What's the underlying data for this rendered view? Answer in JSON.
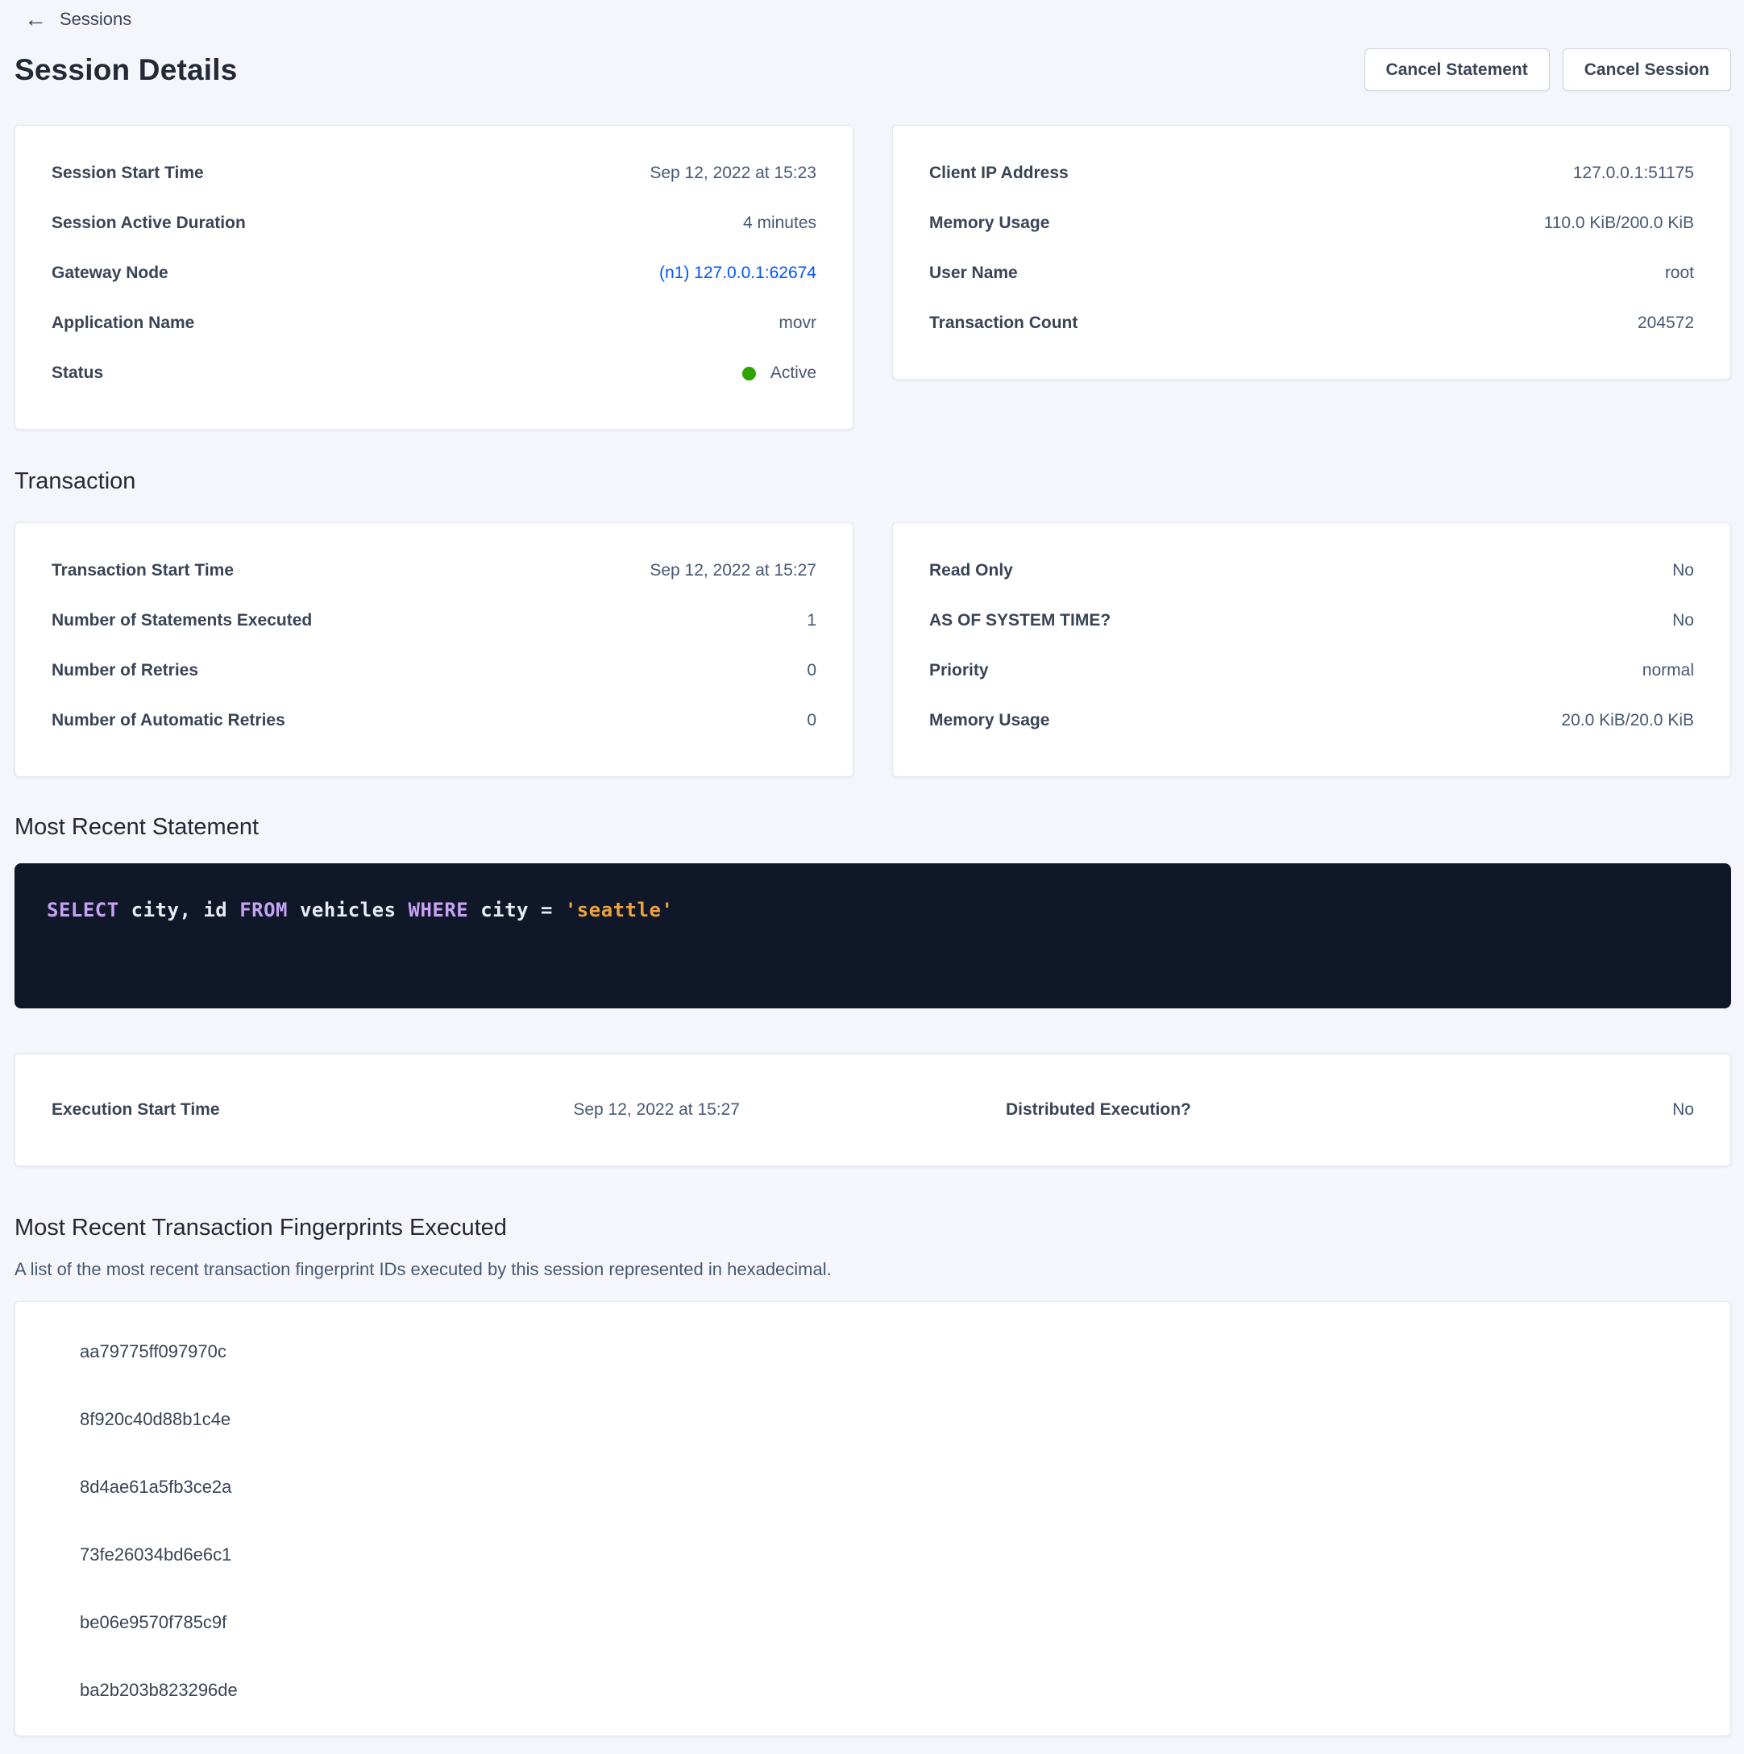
{
  "breadcrumb": {
    "label": "Sessions",
    "back_icon": "left-arrow"
  },
  "page": {
    "title": "Session Details"
  },
  "actions": {
    "cancel_statement": "Cancel Statement",
    "cancel_session": "Cancel Session"
  },
  "session": {
    "left": {
      "rows": [
        {
          "label": "Session Start Time",
          "value": "Sep 12, 2022 at 15:23"
        },
        {
          "label": "Session Active Duration",
          "value": "4 minutes"
        },
        {
          "label": "Gateway Node",
          "value": "(n1) 127.0.0.1:62674"
        },
        {
          "label": "Application Name",
          "value": "movr"
        },
        {
          "label": "Status",
          "value": "Active"
        }
      ]
    },
    "right": {
      "rows": [
        {
          "label": "Client IP Address",
          "value": "127.0.0.1:51175"
        },
        {
          "label": "Memory Usage",
          "value": "110.0 KiB/200.0 KiB"
        },
        {
          "label": "User Name",
          "value": "root"
        },
        {
          "label": "Transaction Count",
          "value": "204572"
        }
      ]
    }
  },
  "transaction": {
    "heading": "Transaction",
    "left": {
      "rows": [
        {
          "label": "Transaction Start Time",
          "value": "Sep 12, 2022 at 15:27"
        },
        {
          "label": "Number of Statements Executed",
          "value": "1"
        },
        {
          "label": "Number of Retries",
          "value": "0"
        },
        {
          "label": "Number of Automatic Retries",
          "value": "0"
        }
      ]
    },
    "right": {
      "rows": [
        {
          "label": "Read Only",
          "value": "No"
        },
        {
          "label": "AS OF SYSTEM TIME?",
          "value": "No"
        },
        {
          "label": "Priority",
          "value": "normal"
        },
        {
          "label": "Memory Usage",
          "value": "20.0 KiB/20.0 KiB"
        }
      ]
    }
  },
  "statement": {
    "heading": "Most Recent Statement",
    "sql_text": "SELECT city, id FROM vehicles WHERE city = 'seattle'",
    "tokens": [
      {
        "type": "keyword",
        "text": "SELECT"
      },
      {
        "type": "plain",
        "text": " city, id "
      },
      {
        "type": "keyword",
        "text": "FROM"
      },
      {
        "type": "plain",
        "text": " vehicles "
      },
      {
        "type": "keyword",
        "text": "WHERE"
      },
      {
        "type": "plain",
        "text": " city = "
      },
      {
        "type": "string",
        "text": "'seattle'"
      }
    ]
  },
  "execution": {
    "rows": [
      {
        "label": "Execution Start Time",
        "value": "Sep 12, 2022 at 15:27"
      },
      {
        "label": "Distributed Execution?",
        "value": "No"
      }
    ]
  },
  "fingerprints": {
    "heading": "Most Recent Transaction Fingerprints Executed",
    "description": "A list of the most recent transaction fingerprint IDs executed by this session represented in hexadecimal.",
    "items": [
      "aa79775ff097970c",
      "8f920c40d88b1c4e",
      "8d4ae61a5fb3ce2a",
      "73fe26034bd6e6c1",
      "be06e9570f785c9f",
      "ba2b203b823296de"
    ]
  },
  "colors": {
    "page_background": "#f4f6fb",
    "card_background": "#ffffff",
    "heading_text": "#242a35",
    "label_text": "#394455",
    "value_text": "#475872",
    "accent_link_blue": "#0055ff",
    "status_active_green": "#2ea300",
    "sql_box_background": "#0f1729",
    "sql_keyword_purple": "#c5a3f2",
    "sql_plain_text": "#e8ebf2",
    "sql_string_orange": "#eea23f"
  }
}
